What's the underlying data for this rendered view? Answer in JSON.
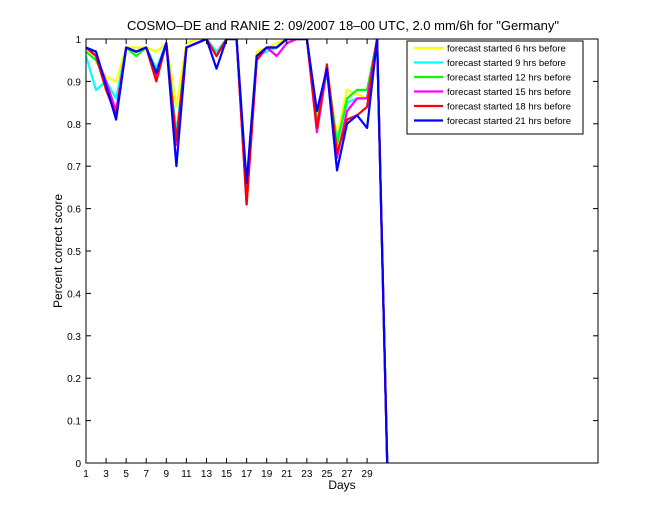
{
  "chart_data": {
    "type": "line",
    "title": "COSMO–DE and RANIE 2: 09/2007 18–00 UTC, 2.0 mm/6h for \"Germany\"",
    "xlabel": "Days",
    "ylabel": "Percent correct score",
    "xlim": [
      1,
      52
    ],
    "ylim": [
      0,
      1
    ],
    "x_ticks": [
      1,
      3,
      5,
      7,
      9,
      11,
      13,
      15,
      17,
      19,
      21,
      23,
      25,
      27,
      29
    ],
    "y_ticks": [
      0,
      0.1,
      0.2,
      0.3,
      0.4,
      0.5,
      0.6,
      0.7,
      0.8,
      0.9,
      1
    ],
    "y_tick_labels": [
      "0",
      "0.1",
      "0.2",
      "0.3",
      "0.4",
      "0.5",
      "0.6",
      "0.7",
      "0.8",
      "0.9",
      "1"
    ],
    "grid": false,
    "legend_position": "top-right",
    "x": [
      1,
      2,
      3,
      4,
      5,
      6,
      7,
      8,
      9,
      10,
      11,
      12,
      13,
      14,
      15,
      16,
      17,
      18,
      19,
      20,
      21,
      22,
      23,
      24,
      25,
      26,
      27,
      28,
      29,
      30,
      31
    ],
    "series": [
      {
        "name": "forecast started 6 hrs before",
        "color": "#ffff00",
        "values": [
          0.97,
          0.95,
          0.91,
          0.9,
          0.98,
          0.98,
          0.98,
          0.97,
          0.99,
          0.84,
          0.99,
          1.0,
          1.0,
          0.97,
          1.0,
          1.0,
          0.65,
          0.97,
          0.98,
          0.99,
          1.0,
          1.0,
          1.0,
          0.82,
          0.93,
          0.77,
          0.88,
          0.87,
          0.86,
          1.0,
          0.0
        ]
      },
      {
        "name": "forecast started 9 hrs before",
        "color": "#00ffff",
        "values": [
          0.96,
          0.88,
          0.9,
          0.86,
          0.98,
          0.97,
          0.98,
          0.93,
          0.99,
          0.78,
          0.98,
          0.99,
          1.0,
          0.97,
          1.0,
          1.0,
          0.63,
          0.96,
          0.97,
          0.98,
          1.0,
          1.0,
          1.0,
          0.8,
          0.92,
          0.76,
          0.85,
          0.86,
          0.86,
          1.0,
          0.0
        ]
      },
      {
        "name": "forecast started 12 hrs before",
        "color": "#00ff00",
        "values": [
          0.97,
          0.95,
          0.9,
          0.83,
          0.98,
          0.96,
          0.98,
          0.92,
          0.99,
          0.76,
          0.98,
          0.99,
          1.0,
          0.96,
          1.0,
          1.0,
          0.62,
          0.96,
          0.98,
          0.98,
          1.0,
          1.0,
          1.0,
          0.8,
          0.93,
          0.75,
          0.86,
          0.88,
          0.88,
          1.0,
          0.0
        ]
      },
      {
        "name": "forecast started 15 hrs before",
        "color": "#ff00ff",
        "values": [
          0.98,
          0.96,
          0.9,
          0.83,
          0.98,
          0.97,
          0.98,
          0.91,
          0.99,
          0.75,
          0.98,
          0.99,
          1.0,
          0.96,
          1.0,
          1.0,
          0.61,
          0.95,
          0.98,
          0.96,
          0.99,
          1.0,
          1.0,
          0.78,
          0.93,
          0.72,
          0.83,
          0.86,
          0.86,
          1.0,
          0.0
        ]
      },
      {
        "name": "forecast started 18 hrs before",
        "color": "#ff0000",
        "values": [
          0.98,
          0.96,
          0.88,
          0.82,
          0.98,
          0.97,
          0.98,
          0.9,
          0.99,
          0.76,
          0.98,
          0.99,
          1.0,
          0.96,
          1.0,
          1.0,
          0.61,
          0.95,
          0.98,
          0.98,
          1.0,
          1.0,
          1.0,
          0.79,
          0.94,
          0.73,
          0.81,
          0.82,
          0.84,
          1.0,
          0.0
        ]
      },
      {
        "name": "forecast started 21 hrs before",
        "color": "#0000ff",
        "values": [
          0.98,
          0.97,
          0.89,
          0.81,
          0.98,
          0.97,
          0.98,
          0.92,
          0.99,
          0.7,
          0.98,
          0.99,
          1.0,
          0.93,
          1.0,
          1.0,
          0.66,
          0.96,
          0.98,
          0.98,
          1.0,
          1.0,
          1.0,
          0.83,
          0.93,
          0.69,
          0.8,
          0.82,
          0.79,
          1.0,
          0.0
        ]
      }
    ]
  }
}
